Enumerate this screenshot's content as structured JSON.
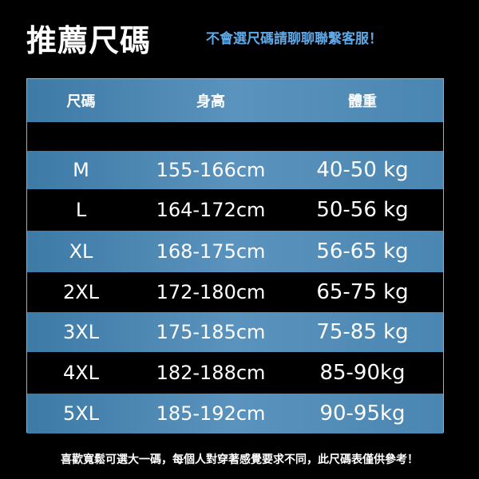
{
  "title": "推薦尺碼",
  "subtitle": "不會選尺碼請聊聊聯繫客服！",
  "table": {
    "headers": [
      "尺碼",
      "身高",
      "體重"
    ],
    "rows": [
      {
        "size": "M",
        "height": "155-166cm",
        "weight": "40-50 kg"
      },
      {
        "size": "L",
        "height": "164-172cm",
        "weight": "50-56 kg"
      },
      {
        "size": "XL",
        "height": "168-175cm",
        "weight": "56-65 kg"
      },
      {
        "size": "2XL",
        "height": "172-180cm",
        "weight": "65-75 kg"
      },
      {
        "size": "3XL",
        "height": "175-185cm",
        "weight": "75-85 kg"
      },
      {
        "size": "4XL",
        "height": "182-188cm",
        "weight": "85-90kg"
      },
      {
        "size": "5XL",
        "height": "185-192cm",
        "weight": "90-95kg"
      }
    ]
  },
  "footer": "喜歡寬鬆可選大一碼，每個人對穿著感覺要求不同，此尺碼表僅供參考！",
  "colors": {
    "accent": "#5fa9e8",
    "row_blue": "#4a86b2"
  }
}
